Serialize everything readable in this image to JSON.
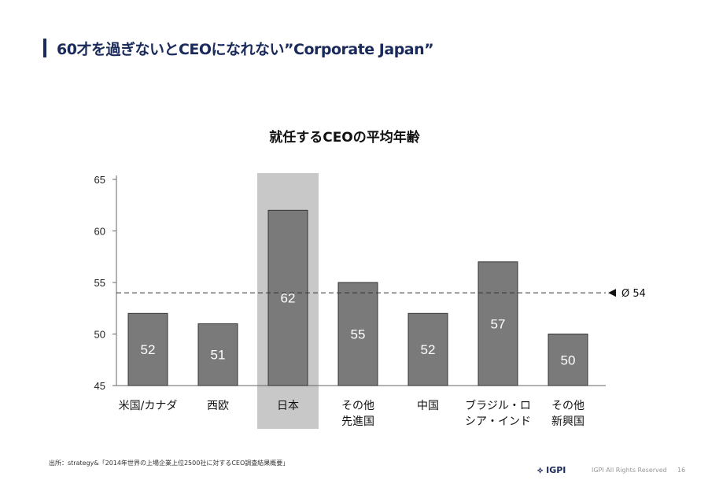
{
  "header": {
    "title": "60才を過ぎないとCEOになれない”Corporate Japan”"
  },
  "chart_data": {
    "type": "bar",
    "title": "就任するCEOの平均年齢",
    "categories": [
      "米国/カナダ",
      "西欧",
      "日本",
      "その他\n先進国",
      "中国",
      "ブラジル・ロ\nシア・インド",
      "その他\n新興国"
    ],
    "values": [
      52,
      51,
      62,
      55,
      52,
      57,
      50
    ],
    "highlight": "日本",
    "ylim": [
      45,
      65
    ],
    "yticks": [
      45,
      50,
      55,
      60,
      65
    ],
    "average": {
      "value": 54,
      "label": "Ø 54"
    },
    "colors": {
      "bar": "#7a7a7a",
      "highlight": "#c8c8c8",
      "label": "#ffffff"
    }
  },
  "footer": {
    "source": "出所：strategy&「2014年世界の上場企業上位2500社に対するCEO調査結果概要」",
    "logo": "IGPI",
    "rights": "IGPI All Rights Reserved",
    "page": "16"
  }
}
